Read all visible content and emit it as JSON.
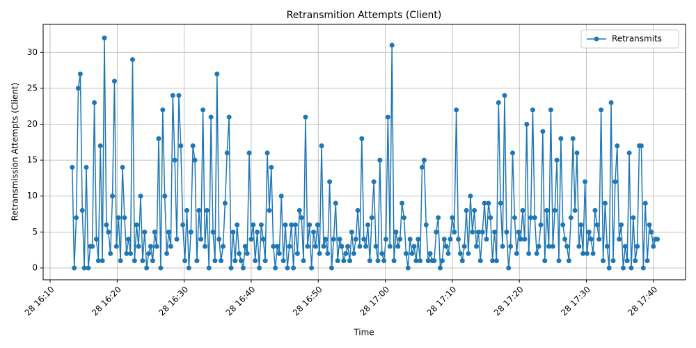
{
  "chart_data": {
    "type": "line",
    "title": "Retransmition Attempts (Client)",
    "x_label": "Time",
    "y_label": "Retransmission Attempts (Client)",
    "x": [
      13.3,
      13.6,
      13.9,
      14.2,
      14.5,
      14.8,
      15.1,
      15.4,
      15.7,
      16.0,
      16.3,
      16.6,
      16.9,
      17.2,
      17.5,
      17.8,
      18.1,
      18.4,
      18.7,
      19.0,
      19.3,
      19.6,
      19.9,
      20.2,
      20.5,
      20.8,
      21.1,
      21.4,
      21.7,
      22.0,
      22.3,
      22.6,
      22.9,
      23.2,
      23.5,
      23.8,
      24.1,
      24.4,
      24.7,
      25.0,
      25.3,
      25.6,
      25.9,
      26.2,
      26.5,
      26.8,
      27.1,
      27.4,
      27.7,
      28.0,
      28.3,
      28.6,
      28.9,
      29.2,
      29.5,
      29.8,
      30.1,
      30.4,
      30.7,
      31.0,
      31.3,
      31.6,
      31.9,
      32.2,
      32.5,
      32.8,
      33.1,
      33.4,
      33.7,
      34.0,
      34.3,
      34.6,
      34.9,
      35.2,
      35.5,
      35.8,
      36.1,
      36.4,
      36.7,
      37.0,
      37.3,
      37.6,
      37.9,
      38.2,
      38.5,
      38.8,
      39.1,
      39.4,
      39.7,
      40.0,
      40.3,
      40.6,
      40.9,
      41.2,
      41.5,
      41.8,
      42.1,
      42.4,
      42.7,
      43.0,
      43.3,
      43.6,
      43.9,
      44.2,
      44.5,
      44.8,
      45.1,
      45.4,
      45.7,
      46.0,
      46.3,
      46.6,
      46.9,
      47.2,
      47.5,
      47.8,
      48.1,
      48.4,
      48.7,
      49.0,
      49.3,
      49.6,
      49.9,
      50.2,
      50.5,
      50.8,
      51.1,
      51.4,
      51.7,
      52.0,
      52.3,
      52.6,
      52.9,
      53.2,
      53.5,
      53.8,
      54.1,
      54.4,
      54.7,
      55.0,
      55.3,
      55.6,
      55.9,
      56.2,
      56.5,
      56.8,
      57.1,
      57.4,
      57.7,
      58.0,
      58.3,
      58.6,
      58.9,
      59.2,
      59.5,
      59.8,
      60.1,
      60.4,
      60.7,
      61.0,
      61.3,
      61.6,
      61.9,
      62.2,
      62.5,
      62.8,
      63.1,
      63.4,
      63.7,
      64.0,
      64.3,
      64.6,
      64.9,
      65.2,
      65.5,
      65.8,
      66.1,
      66.4,
      66.7,
      67.0,
      67.3,
      67.6,
      67.9,
      68.2,
      68.5,
      68.8,
      69.1,
      69.4,
      69.7,
      70.0,
      70.3,
      70.6,
      70.9,
      71.2,
      71.5,
      71.8,
      72.1,
      72.4,
      72.7,
      73.0,
      73.3,
      73.6,
      73.9,
      74.2,
      74.5,
      74.8,
      75.1,
      75.4,
      75.7,
      76.0,
      76.3,
      76.6,
      76.9,
      77.2,
      77.5,
      77.8,
      78.1,
      78.4,
      78.7,
      79.0,
      79.3,
      79.6,
      79.9,
      80.2,
      80.5,
      80.8,
      81.1,
      81.4,
      81.7,
      82.0,
      82.3,
      82.6,
      82.9,
      83.2,
      83.5,
      83.8,
      84.1,
      84.4,
      84.7,
      85.0,
      85.3,
      85.6,
      85.9,
      86.2,
      86.5,
      86.8,
      87.1,
      87.4,
      87.7,
      88.0,
      88.3,
      88.6,
      88.9,
      89.2,
      89.5,
      89.8,
      90.1,
      90.4,
      90.7,
      91.0,
      91.3,
      91.6,
      91.9,
      92.2,
      92.5,
      92.8,
      93.1,
      93.4,
      93.7,
      94.0,
      94.3,
      94.6,
      94.9,
      95.2,
      95.5,
      95.8,
      96.1,
      96.4,
      96.7,
      97.0,
      97.3,
      97.6,
      97.9,
      98.2,
      98.5,
      98.8,
      99.1,
      99.4,
      99.7,
      100.0,
      100.3,
      100.6
    ],
    "series": [
      {
        "name": "Retransmits",
        "color": "#1f77b4",
        "values": [
          14,
          0,
          7,
          25,
          27,
          8,
          0,
          14,
          0,
          3,
          3,
          23,
          4,
          1,
          17,
          1,
          32,
          6,
          5,
          2,
          10,
          26,
          3,
          7,
          1,
          14,
          7,
          2,
          4,
          2,
          29,
          1,
          6,
          3,
          10,
          1,
          5,
          0,
          2,
          3,
          1,
          5,
          3,
          18,
          0,
          22,
          10,
          2,
          5,
          3,
          24,
          15,
          4,
          24,
          17,
          6,
          1,
          8,
          0,
          5,
          17,
          15,
          1,
          8,
          4,
          22,
          3,
          8,
          0,
          21,
          5,
          1,
          27,
          4,
          1,
          3,
          9,
          16,
          21,
          0,
          5,
          1,
          6,
          2,
          1,
          0,
          3,
          2,
          16,
          4,
          6,
          1,
          5,
          0,
          6,
          4,
          1,
          16,
          8,
          14,
          3,
          0,
          3,
          2,
          10,
          1,
          6,
          0,
          3,
          6,
          0,
          6,
          2,
          8,
          7,
          1,
          21,
          3,
          6,
          0,
          5,
          3,
          6,
          2,
          17,
          3,
          4,
          2,
          12,
          0,
          4,
          9,
          1,
          4,
          3,
          1,
          2,
          3,
          1,
          5,
          2,
          4,
          8,
          3,
          18,
          4,
          3,
          6,
          1,
          7,
          12,
          3,
          1,
          15,
          2,
          1,
          4,
          21,
          3,
          31,
          1,
          5,
          3,
          4,
          9,
          7,
          2,
          0,
          4,
          2,
          3,
          1,
          4,
          1,
          14,
          15,
          6,
          1,
          2,
          1,
          1,
          5,
          7,
          0,
          1,
          4,
          3,
          2,
          4,
          7,
          5,
          22,
          4,
          2,
          1,
          3,
          8,
          2,
          10,
          5,
          8,
          3,
          5,
          1,
          5,
          9,
          4,
          9,
          7,
          1,
          5,
          1,
          23,
          9,
          3,
          24,
          5,
          0,
          3,
          16,
          7,
          2,
          5,
          4,
          8,
          4,
          20,
          2,
          7,
          22,
          7,
          2,
          3,
          6,
          19,
          1,
          8,
          3,
          22,
          3,
          8,
          15,
          1,
          18,
          6,
          4,
          3,
          1,
          7,
          18,
          8,
          16,
          3,
          6,
          2,
          12,
          2,
          5,
          4,
          2,
          8,
          6,
          4,
          22,
          1,
          9,
          3,
          0,
          23,
          1,
          12,
          17,
          4,
          6,
          0,
          3,
          1,
          16,
          0,
          7,
          1,
          3,
          17,
          17,
          0,
          9,
          1,
          6,
          5,
          3,
          4,
          4
        ]
      }
    ],
    "xlim": [
      8.96,
      104.8
    ],
    "xticks": [
      {
        "value": 10,
        "label": "28 16:10"
      },
      {
        "value": 20,
        "label": "28 16:20"
      },
      {
        "value": 30,
        "label": "28 16:30"
      },
      {
        "value": 40,
        "label": "28 16:40"
      },
      {
        "value": 50,
        "label": "28 16:50"
      },
      {
        "value": 60,
        "label": "28 17:00"
      },
      {
        "value": 70,
        "label": "28 17:10"
      },
      {
        "value": 80,
        "label": "28 17:20"
      },
      {
        "value": 90,
        "label": "28 17:30"
      },
      {
        "value": 100,
        "label": "28 17:40"
      }
    ],
    "ylim": [
      -1.65,
      33.9
    ],
    "yticks": [
      0,
      5,
      10,
      15,
      20,
      25,
      30
    ],
    "grid": true,
    "legend": "upper right"
  }
}
